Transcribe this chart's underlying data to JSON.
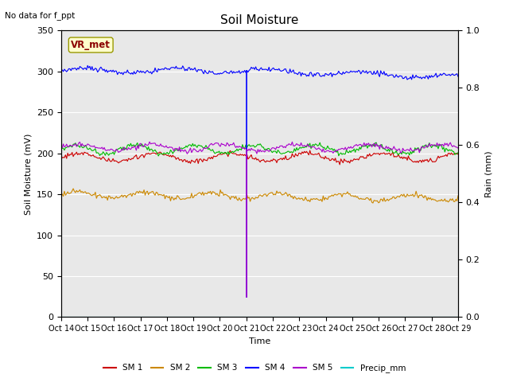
{
  "title": "Soil Moisture",
  "no_data_text": "No data for f_ppt",
  "vr_met_label": "VR_met",
  "xlabel": "Time",
  "ylabel_left": "Soil Moisture (mV)",
  "ylabel_right": "Rain (mm)",
  "ylim_left": [
    0,
    350
  ],
  "ylim_right": [
    0.0,
    1.0
  ],
  "yticks_left": [
    0,
    50,
    100,
    150,
    200,
    250,
    300,
    350
  ],
  "yticks_right": [
    0.0,
    0.2,
    0.4,
    0.6,
    0.8,
    1.0
  ],
  "n_points": 360,
  "sm1_base": 195,
  "sm1_amp": 5,
  "sm1_color": "#cc0000",
  "sm2_base": 150,
  "sm2_amp": 4,
  "sm2_color": "#cc8800",
  "sm3_base": 205,
  "sm3_amp": 5,
  "sm3_color": "#00bb00",
  "sm4_base": 301,
  "sm4_amp": 3,
  "sm4_color": "#0000ff",
  "sm5_base": 207,
  "sm5_amp": 4,
  "sm5_color": "#aa00cc",
  "precip_color": "#00cccc",
  "background_color": "#e8e8e8",
  "tick_labels": [
    "Oct 14",
    "Oct 15",
    "Oct 16",
    "Oct 17",
    "Oct 18",
    "Oct 19",
    "Oct 20",
    "Oct 21",
    "Oct 22",
    "Oct 23",
    "Oct 24",
    "Oct 25",
    "Oct 26",
    "Oct 27",
    "Oct 28",
    "Oct 29"
  ],
  "legend_labels": [
    "SM 1",
    "SM 2",
    "SM 3",
    "SM 4",
    "SM 5",
    "Precip_mm"
  ],
  "legend_colors": [
    "#cc0000",
    "#cc8800",
    "#00bb00",
    "#0000ff",
    "#aa00cc",
    "#00cccc"
  ]
}
